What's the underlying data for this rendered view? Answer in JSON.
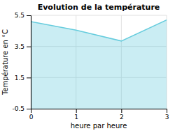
{
  "chart_data": {
    "type": "area",
    "title": "Evolution de la température",
    "xlabel": "heure par heure",
    "ylabel": "Température en °C",
    "x": [
      0,
      1,
      2,
      3
    ],
    "values": [
      5.1,
      4.55,
      3.85,
      5.2
    ],
    "color": "#66ccdd",
    "xlim": [
      0,
      3
    ],
    "ylim": [
      -0.5,
      5.5
    ],
    "xticks": [
      0,
      1,
      2,
      3
    ],
    "yticks": [
      -0.5,
      1.5,
      3.5,
      5.5
    ],
    "grid": true
  }
}
